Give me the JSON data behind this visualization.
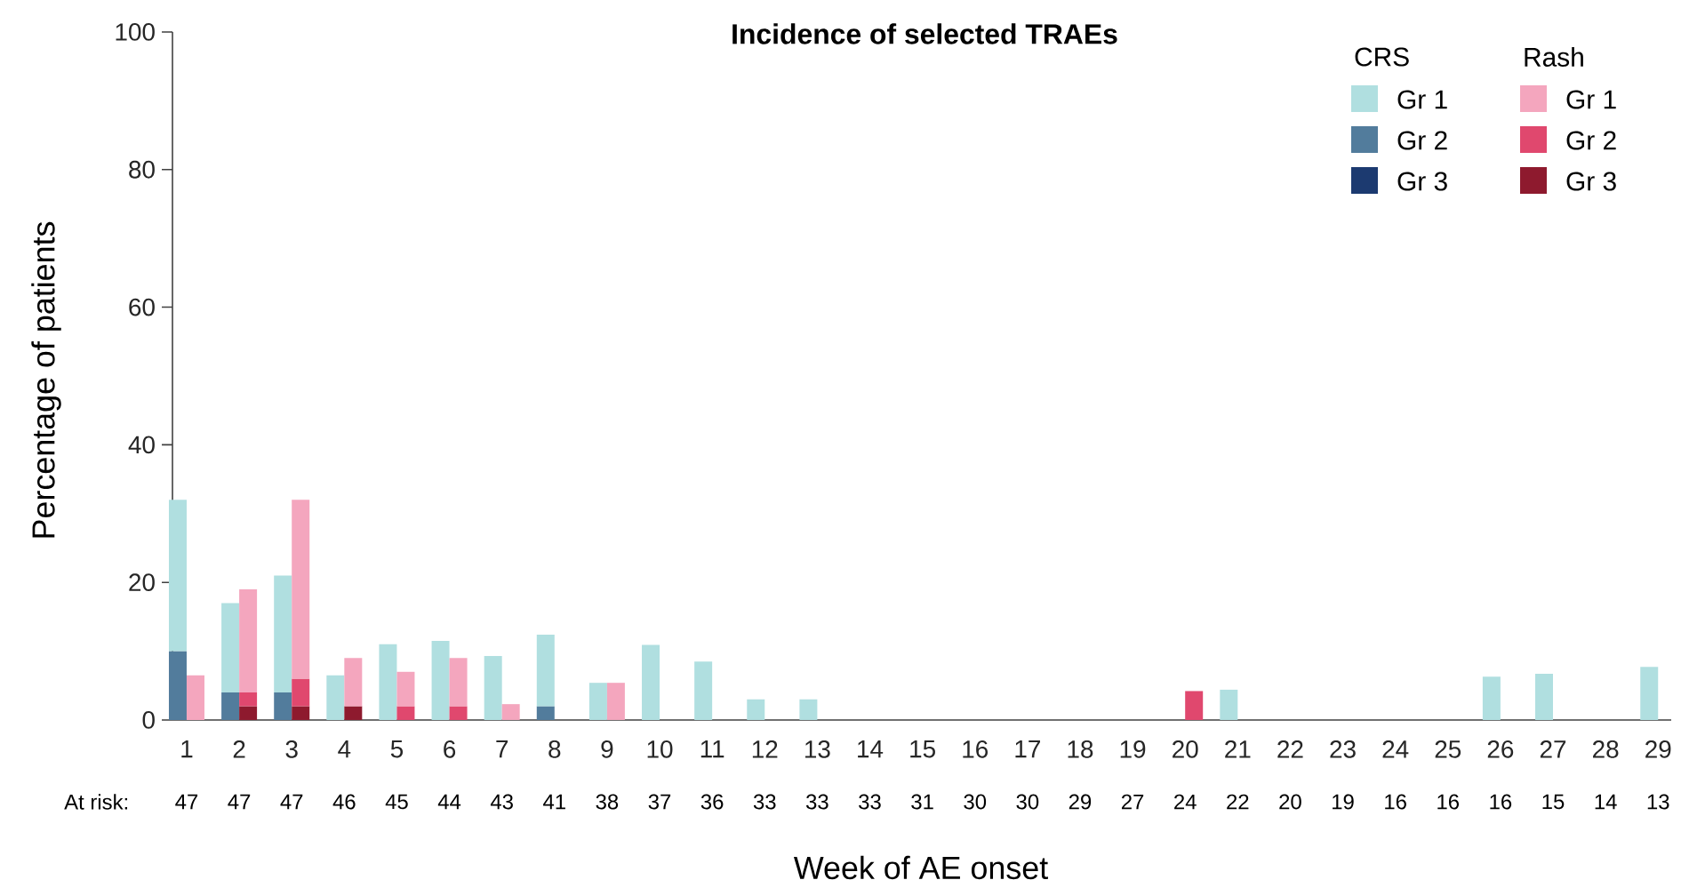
{
  "chart_data": {
    "type": "bar",
    "title": "Incidence of selected TRAEs",
    "xlabel": "Week of AE onset",
    "ylabel": "Percentage of patients",
    "categories": [
      "1",
      "2",
      "3",
      "4",
      "5",
      "6",
      "7",
      "8",
      "9",
      "10",
      "11",
      "12",
      "13",
      "14",
      "15",
      "16",
      "17",
      "18",
      "19",
      "20",
      "21",
      "22",
      "23",
      "24",
      "25",
      "26",
      "27",
      "28",
      "29"
    ],
    "series": [
      {
        "name": "Gr 2",
        "color": "#527c9c",
        "values": [
          10,
          4,
          4,
          0,
          0,
          0,
          0,
          2,
          0,
          0,
          0,
          0,
          0,
          0,
          0,
          0,
          0,
          0,
          0,
          0,
          0,
          0,
          0,
          0,
          0,
          0,
          0,
          0,
          0
        ],
        "base": [
          0,
          0,
          0,
          null,
          null,
          null,
          null,
          0,
          null,
          null,
          null,
          null,
          null,
          null,
          null,
          null,
          null,
          null,
          null,
          null,
          null,
          null,
          null,
          null,
          null,
          null,
          null,
          null,
          null
        ]
      },
      {
        "name": "Gr 3",
        "color": "#1c3a70",
        "values": [
          0,
          0,
          0,
          0,
          0,
          0,
          0,
          0,
          0,
          0,
          0,
          0,
          0,
          0,
          0,
          0,
          0,
          0,
          0,
          0,
          0,
          0,
          0,
          0,
          0,
          0,
          0,
          0,
          0
        ]
      },
      {
        "name": "Gr 1",
        "color": "#b0dfe0",
        "values": [
          22,
          13,
          17,
          6.5,
          11,
          11.5,
          9.3,
          10.4,
          5.4,
          10.9,
          8.5,
          3,
          3,
          0,
          0,
          0,
          0,
          0,
          0,
          0,
          4.4,
          0,
          0,
          0,
          0,
          6.3,
          6.7,
          0,
          7.7
        ],
        "base": [
          10,
          4,
          4,
          0,
          0,
          0,
          0,
          2,
          0,
          0,
          0,
          0,
          0,
          null,
          null,
          null,
          null,
          null,
          null,
          null,
          0,
          null,
          null,
          null,
          null,
          0,
          0,
          null,
          0
        ]
      },
      {
        "name": "Gr 3",
        "color": "#8e1a2e",
        "values": [
          0,
          2,
          2,
          2,
          0,
          0,
          0,
          0,
          0,
          0,
          0,
          0,
          0,
          0,
          0,
          0,
          0,
          0,
          0,
          0,
          0,
          0,
          0,
          0,
          0,
          0,
          0,
          0,
          0
        ],
        "base": [
          null,
          0,
          0,
          0,
          null,
          null,
          null,
          null,
          null,
          null,
          null,
          null,
          null,
          null,
          null,
          null,
          null,
          null,
          null,
          null,
          null,
          null,
          null,
          null,
          null,
          null,
          null,
          null,
          null
        ]
      },
      {
        "name": "Gr 2",
        "color": "#e0486e",
        "values": [
          0,
          2,
          4,
          0,
          2,
          2,
          0,
          0,
          0,
          0,
          0,
          0,
          0,
          0,
          0,
          0,
          0,
          0,
          0,
          4.2,
          0,
          0,
          0,
          0,
          0,
          0,
          0,
          0,
          0
        ],
        "base": [
          null,
          2,
          2,
          null,
          0,
          0,
          null,
          null,
          null,
          null,
          null,
          null,
          null,
          null,
          null,
          null,
          null,
          null,
          null,
          0,
          null,
          null,
          null,
          null,
          null,
          null,
          null,
          null,
          null
        ]
      },
      {
        "name": "Gr 1",
        "color": "#f4a6be",
        "values": [
          6.5,
          15,
          26,
          7,
          5,
          7,
          2.3,
          0,
          5.4,
          0,
          0,
          0,
          0,
          0,
          0,
          0,
          0,
          0,
          0,
          0,
          0,
          0,
          0,
          0,
          0,
          0,
          0,
          0,
          0
        ],
        "base": [
          0,
          4,
          6,
          2,
          2,
          2,
          0,
          null,
          0,
          null,
          null,
          null,
          null,
          null,
          null,
          null,
          null,
          null,
          null,
          null,
          null,
          null,
          null,
          null,
          null,
          null,
          null,
          null,
          null
        ]
      }
    ],
    "ylim": [
      0,
      100
    ],
    "yticks": [
      0,
      20,
      40,
      60,
      80,
      100
    ],
    "grid": false,
    "legend": "top right",
    "annotations": [
      "CRS",
      "Rash",
      "At risk:",
      "47",
      "47",
      "47",
      "46",
      "45",
      "44",
      "43",
      "41",
      "38",
      "37",
      "36",
      "33",
      "33",
      "33",
      "31",
      "30",
      "30",
      "29",
      "27",
      "24",
      "22",
      "20",
      "19",
      "16",
      "16",
      "16",
      "15",
      "14",
      "13"
    ]
  }
}
